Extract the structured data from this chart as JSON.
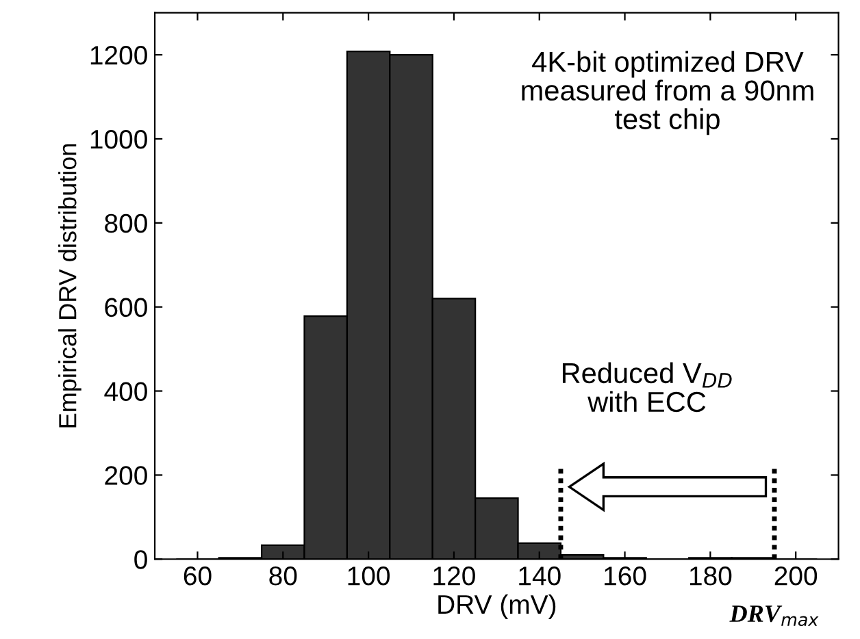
{
  "chart_data": {
    "type": "histogram",
    "xlabel": "DRV (mV)",
    "ylabel": "Empirical DRV distribution",
    "bins": [
      55,
      65,
      75,
      85,
      95,
      105,
      115,
      125,
      135,
      145,
      155,
      165,
      175,
      185,
      195,
      205
    ],
    "values": [
      0,
      3,
      33,
      578,
      1208,
      1200,
      620,
      145,
      38,
      10,
      3,
      0,
      3,
      3,
      0
    ],
    "color": "#333333",
    "xlim": [
      50,
      210
    ],
    "xticks": [
      60,
      80,
      100,
      120,
      140,
      160,
      180,
      200
    ],
    "ylim": [
      0,
      1300
    ],
    "yticks": [
      0,
      200,
      400,
      600,
      800,
      1000,
      1200
    ],
    "grid": false,
    "ref_lines": [
      {
        "axis": "x",
        "value": 145,
        "label": null,
        "line_style": "dotted",
        "color": "#000000"
      },
      {
        "axis": "x",
        "value": 195,
        "label": "DRV$_{max}$",
        "line_style": "dotted",
        "color": "#000000"
      }
    ],
    "annotations": [
      "4K-bit optimized DRV\nmeasured from a 90nm\ntest chip",
      "Reduced V$_{DD}$\nwith ECC"
    ]
  }
}
